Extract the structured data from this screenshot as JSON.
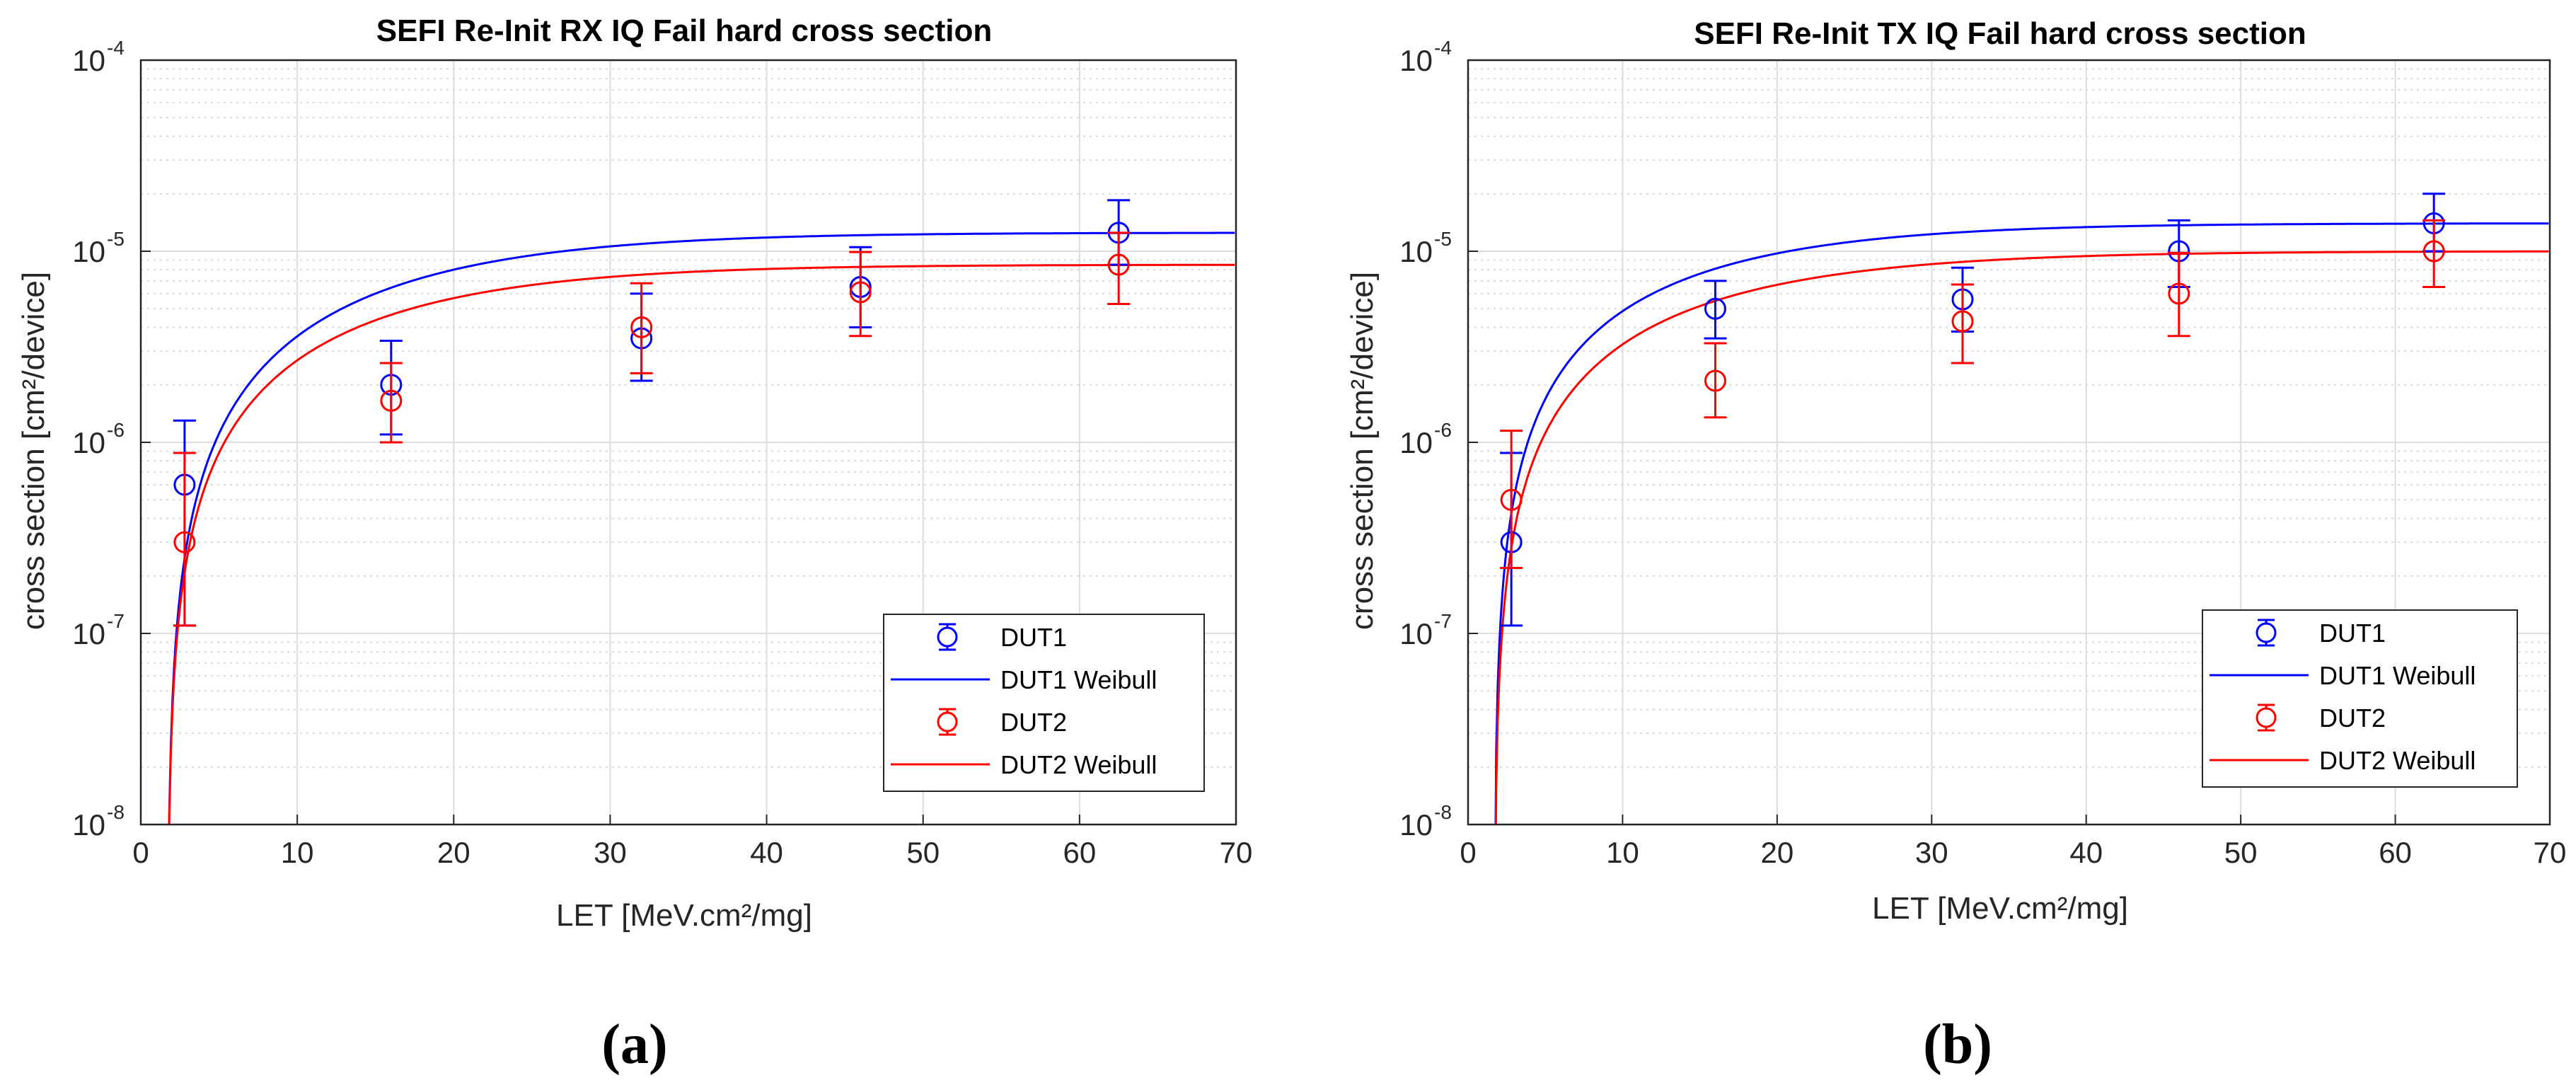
{
  "chart_data": [
    {
      "type": "scatter",
      "title": "SEFI Re-Init RX IQ Fail hard cross section",
      "xlabel": "LET [MeV.cm²/mg]",
      "ylabel": "cross section [cm²/device]",
      "xlim": [
        0,
        70
      ],
      "ylim": [
        1e-08,
        0.0001
      ],
      "yscale": "log",
      "grid": true,
      "legend_position": "lower-right",
      "panel_label": "(a)",
      "x_ticks": [
        "0",
        "10",
        "20",
        "30",
        "40",
        "50",
        "60",
        "70"
      ],
      "y_ticks": [
        {
          "base": "10",
          "exp": "-8"
        },
        {
          "base": "10",
          "exp": "-7"
        },
        {
          "base": "10",
          "exp": "-6"
        },
        {
          "base": "10",
          "exp": "-5"
        },
        {
          "base": "10",
          "exp": "-4"
        }
      ],
      "series": [
        {
          "name": "DUT1",
          "kind": "errorbar",
          "color": "#0000ff",
          "x": [
            2.8,
            16,
            32,
            46,
            62.5
          ],
          "y": [
            6e-07,
            2e-06,
            3.5e-06,
            6.5e-06,
            1.25e-05
          ],
          "ylow": [
            1.1e-07,
            1.1e-06,
            2.1e-06,
            4e-06,
            8.5e-06
          ],
          "yhigh": [
            1.3e-06,
            3.4e-06,
            6e-06,
            1.05e-05,
            1.85e-05
          ]
        },
        {
          "name": "DUT1 Weibull",
          "kind": "line",
          "color": "#0000ff",
          "x0": 1.7,
          "sat": 1.25e-05,
          "w": 18,
          "s": 1.4
        },
        {
          "name": "DUT2",
          "kind": "errorbar",
          "color": "#ff0000",
          "x": [
            2.8,
            16,
            32,
            46,
            62.5
          ],
          "y": [
            3e-07,
            1.65e-06,
            4e-06,
            6.1e-06,
            8.5e-06
          ],
          "ylow": [
            1.1e-07,
            1e-06,
            2.3e-06,
            3.6e-06,
            5.3e-06
          ],
          "yhigh": [
            8.8e-07,
            2.6e-06,
            6.8e-06,
            9.9e-06,
            1.25e-05
          ]
        },
        {
          "name": "DUT2 Weibull",
          "kind": "line",
          "color": "#ff0000",
          "x0": 1.7,
          "sat": 8.5e-06,
          "w": 17,
          "s": 1.35
        }
      ]
    },
    {
      "type": "scatter",
      "title": "SEFI Re-Init TX IQ Fail hard cross section",
      "xlabel": "LET [MeV.cm²/mg]",
      "ylabel": "cross section [cm²/device]",
      "xlim": [
        0,
        70
      ],
      "ylim": [
        1e-08,
        0.0001
      ],
      "yscale": "log",
      "grid": true,
      "legend_position": "lower-right",
      "panel_label": "(b)",
      "x_ticks": [
        "0",
        "10",
        "20",
        "30",
        "40",
        "50",
        "60",
        "70"
      ],
      "y_ticks": [
        {
          "base": "10",
          "exp": "-8"
        },
        {
          "base": "10",
          "exp": "-7"
        },
        {
          "base": "10",
          "exp": "-6"
        },
        {
          "base": "10",
          "exp": "-5"
        },
        {
          "base": "10",
          "exp": "-4"
        }
      ],
      "series": [
        {
          "name": "DUT1",
          "kind": "errorbar",
          "color": "#0000ff",
          "x": [
            2.8,
            16,
            32,
            46,
            62.5
          ],
          "y": [
            3e-07,
            5e-06,
            5.6e-06,
            1e-05,
            1.4e-05
          ],
          "ylow": [
            1.1e-07,
            3.5e-06,
            3.8e-06,
            6.5e-06,
            1e-05
          ],
          "yhigh": [
            8.8e-07,
            7e-06,
            8.2e-06,
            1.45e-05,
            2e-05
          ]
        },
        {
          "name": "DUT1 Weibull",
          "kind": "line",
          "color": "#0000ff",
          "x0": 1.7,
          "sat": 1.4e-05,
          "w": 16,
          "s": 1.3
        },
        {
          "name": "DUT2",
          "kind": "errorbar",
          "color": "#ff0000",
          "x": [
            2.8,
            16,
            32,
            46,
            62.5
          ],
          "y": [
            5e-07,
            2.1e-06,
            4.3e-06,
            6e-06,
            1e-05
          ],
          "ylow": [
            2.2e-07,
            1.35e-06,
            2.6e-06,
            3.6e-06,
            6.5e-06
          ],
          "yhigh": [
            1.15e-06,
            3.3e-06,
            6.7e-06,
            9.8e-06,
            1.45e-05
          ]
        },
        {
          "name": "DUT2 Weibull",
          "kind": "line",
          "color": "#ff0000",
          "x0": 1.7,
          "sat": 1e-05,
          "w": 17,
          "s": 1.3
        }
      ]
    }
  ]
}
